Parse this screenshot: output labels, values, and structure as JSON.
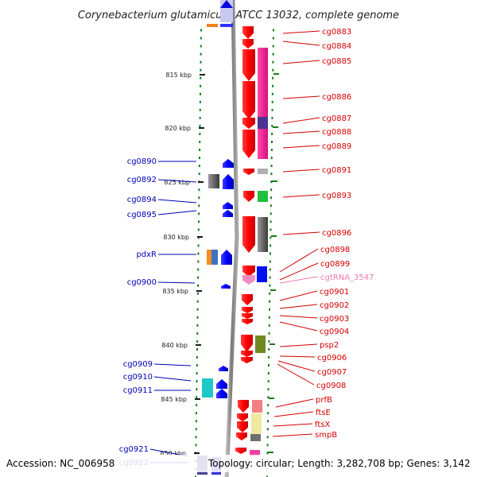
{
  "title": "Corynebacterium glutamicum ATCC 13032, complete genome",
  "footer": {
    "accession": "Accession: NC_006958",
    "summary": "Topology: circular; Length: 3,282,708 bp; Genes: 3,142"
  },
  "colors": {
    "backbone": "#888888",
    "scale_dots": "#1a7a1a",
    "right_label": "#d40000",
    "left_label": "#0000b4",
    "rna_label": "#f07ab4"
  },
  "scale": [
    "815 kbp",
    "820 kbp",
    "825 kbp",
    "830 kbp",
    "835 kbp",
    "840 kbp",
    "845 kbp",
    "850 kbp"
  ],
  "right_labels": [
    "cg0883",
    "cg0884",
    "cg0885",
    "cg0886",
    "cg0887",
    "cg0888",
    "cg0889",
    "cg0891",
    "cg0893",
    "cg0896",
    "cg0898",
    "cg0899",
    "cgtRNA_3547",
    "cg0901",
    "cg0902",
    "cg0903",
    "cg0904",
    "psp2",
    "cg0906",
    "cg0907",
    "cg0908",
    "prfB",
    "ftsE",
    "ftsX",
    "smpB"
  ],
  "left_labels": [
    "cg0890",
    "cg0892",
    "cg0894",
    "cg0895",
    "pdxR",
    "cg0900",
    "cg0909",
    "cg0910",
    "cg0911",
    "cg0921",
    "cg0922"
  ]
}
